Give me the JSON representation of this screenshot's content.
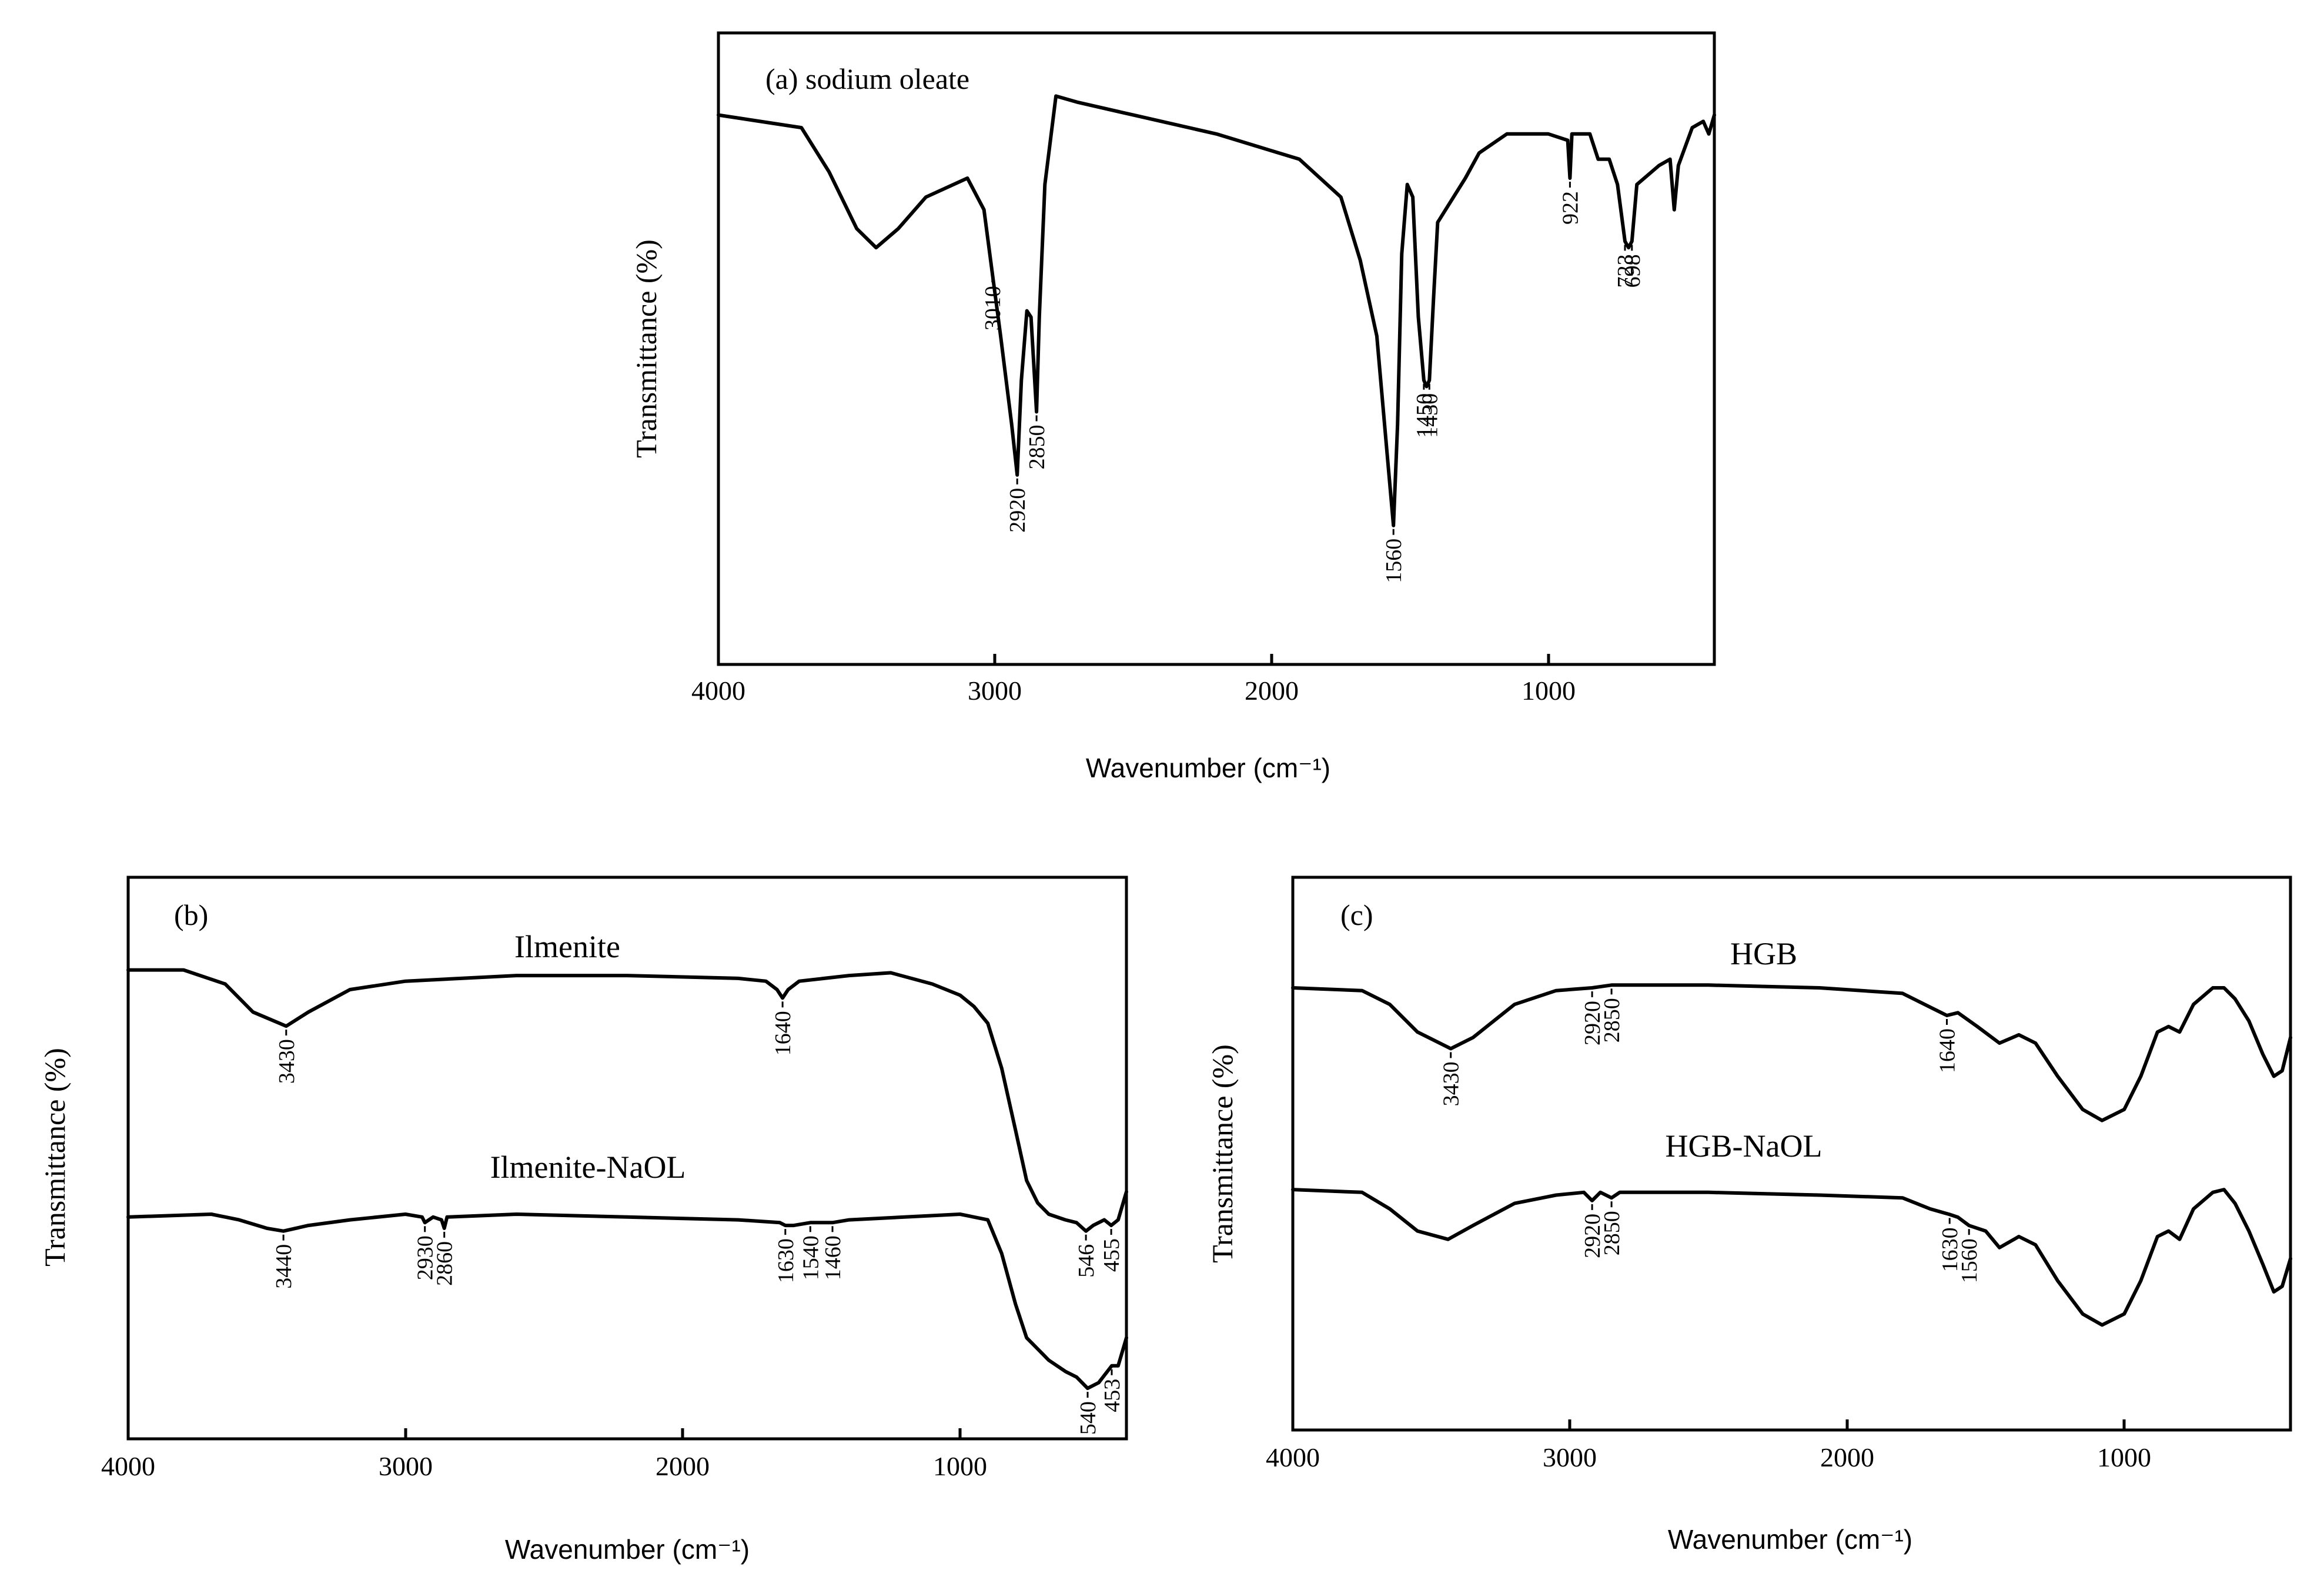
{
  "chart_data": [
    {
      "id": "a",
      "type": "line",
      "title": "(a) sodium oleate",
      "xlabel": "Wavenumber (cm⁻¹)",
      "ylabel": "Transmittance (%)",
      "xlim": [
        4000,
        400
      ],
      "xticks": [
        "4000",
        "3000",
        "2000",
        "1000"
      ],
      "series": [
        {
          "name": "sodium oleate",
          "label": "",
          "points": [
            [
              4000,
              0.87
            ],
            [
              3700,
              0.85
            ],
            [
              3600,
              0.78
            ],
            [
              3500,
              0.69
            ],
            [
              3430,
              0.66
            ],
            [
              3350,
              0.69
            ],
            [
              3250,
              0.74
            ],
            [
              3100,
              0.77
            ],
            [
              3040,
              0.72
            ],
            [
              3010,
              0.62
            ],
            [
              2980,
              0.52
            ],
            [
              2940,
              0.38
            ],
            [
              2920,
              0.3
            ],
            [
              2905,
              0.45
            ],
            [
              2885,
              0.56
            ],
            [
              2870,
              0.55
            ],
            [
              2850,
              0.4
            ],
            [
              2840,
              0.55
            ],
            [
              2820,
              0.76
            ],
            [
              2780,
              0.9
            ],
            [
              2700,
              0.89
            ],
            [
              2500,
              0.87
            ],
            [
              2200,
              0.84
            ],
            [
              1900,
              0.8
            ],
            [
              1750,
              0.74
            ],
            [
              1680,
              0.64
            ],
            [
              1620,
              0.52
            ],
            [
              1580,
              0.32
            ],
            [
              1560,
              0.22
            ],
            [
              1545,
              0.38
            ],
            [
              1530,
              0.65
            ],
            [
              1510,
              0.76
            ],
            [
              1490,
              0.74
            ],
            [
              1470,
              0.55
            ],
            [
              1450,
              0.45
            ],
            [
              1440,
              0.44
            ],
            [
              1430,
              0.45
            ],
            [
              1415,
              0.58
            ],
            [
              1400,
              0.7
            ],
            [
              1300,
              0.77
            ],
            [
              1250,
              0.81
            ],
            [
              1150,
              0.84
            ],
            [
              1000,
              0.84
            ],
            [
              930,
              0.83
            ],
            [
              922,
              0.77
            ],
            [
              915,
              0.84
            ],
            [
              850,
              0.84
            ],
            [
              820,
              0.8
            ],
            [
              780,
              0.8
            ],
            [
              750,
              0.76
            ],
            [
              723,
              0.67
            ],
            [
              710,
              0.66
            ],
            [
              698,
              0.67
            ],
            [
              680,
              0.76
            ],
            [
              600,
              0.79
            ],
            [
              560,
              0.8
            ],
            [
              545,
              0.72
            ],
            [
              530,
              0.79
            ],
            [
              480,
              0.85
            ],
            [
              440,
              0.86
            ],
            [
              420,
              0.84
            ],
            [
              400,
              0.87
            ]
          ],
          "peaks": [
            {
              "label": "3010",
              "x": 3010,
              "y": 0.62
            },
            {
              "label": "2920",
              "x": 2920,
              "y": 0.3
            },
            {
              "label": "2850",
              "x": 2850,
              "y": 0.4
            },
            {
              "label": "1560",
              "x": 1560,
              "y": 0.22
            },
            {
              "label": "1450",
              "x": 1450,
              "y": 0.45
            },
            {
              "label": "1430",
              "x": 1430,
              "y": 0.45
            },
            {
              "label": "922",
              "x": 922,
              "y": 0.77
            },
            {
              "label": "723",
              "x": 723,
              "y": 0.67
            },
            {
              "label": "698",
              "x": 698,
              "y": 0.67
            }
          ]
        }
      ]
    },
    {
      "id": "b",
      "type": "line",
      "title": "(b)",
      "xlabel": "Wavenumber (cm⁻¹)",
      "ylabel": "Transmittance (%)",
      "xlim": [
        4000,
        400
      ],
      "xticks": [
        "4000",
        "3000",
        "2000",
        "1000"
      ],
      "series": [
        {
          "name": "Ilmenite",
          "label": "Ilmenite",
          "points": [
            [
              4000,
              0.835
            ],
            [
              3800,
              0.835
            ],
            [
              3650,
              0.81
            ],
            [
              3550,
              0.76
            ],
            [
              3430,
              0.735
            ],
            [
              3350,
              0.76
            ],
            [
              3200,
              0.8
            ],
            [
              3000,
              0.815
            ],
            [
              2600,
              0.825
            ],
            [
              2200,
              0.825
            ],
            [
              1800,
              0.82
            ],
            [
              1700,
              0.815
            ],
            [
              1660,
              0.8
            ],
            [
              1640,
              0.785
            ],
            [
              1620,
              0.8
            ],
            [
              1580,
              0.815
            ],
            [
              1400,
              0.825
            ],
            [
              1250,
              0.83
            ],
            [
              1100,
              0.81
            ],
            [
              1000,
              0.79
            ],
            [
              950,
              0.77
            ],
            [
              900,
              0.74
            ],
            [
              850,
              0.66
            ],
            [
              800,
              0.55
            ],
            [
              760,
              0.46
            ],
            [
              720,
              0.42
            ],
            [
              680,
              0.4
            ],
            [
              620,
              0.39
            ],
            [
              580,
              0.385
            ],
            [
              546,
              0.37
            ],
            [
              520,
              0.38
            ],
            [
              480,
              0.39
            ],
            [
              455,
              0.38
            ],
            [
              430,
              0.39
            ],
            [
              400,
              0.44
            ]
          ],
          "peaks": [
            {
              "label": "3430",
              "x": 3430,
              "y": 0.735
            },
            {
              "label": "1640",
              "x": 1640,
              "y": 0.785
            },
            {
              "label": "546",
              "x": 546,
              "y": 0.37
            },
            {
              "label": "455",
              "x": 455,
              "y": 0.38
            }
          ]
        },
        {
          "name": "Ilmenite-NaOL",
          "label": "Ilmenite-NaOL",
          "points": [
            [
              4000,
              0.395
            ],
            [
              3700,
              0.4
            ],
            [
              3600,
              0.39
            ],
            [
              3500,
              0.375
            ],
            [
              3440,
              0.37
            ],
            [
              3350,
              0.38
            ],
            [
              3200,
              0.39
            ],
            [
              3000,
              0.4
            ],
            [
              2940,
              0.395
            ],
            [
              2930,
              0.385
            ],
            [
              2900,
              0.395
            ],
            [
              2870,
              0.39
            ],
            [
              2860,
              0.375
            ],
            [
              2850,
              0.395
            ],
            [
              2600,
              0.4
            ],
            [
              2200,
              0.395
            ],
            [
              1800,
              0.39
            ],
            [
              1650,
              0.385
            ],
            [
              1630,
              0.38
            ],
            [
              1600,
              0.38
            ],
            [
              1540,
              0.385
            ],
            [
              1500,
              0.385
            ],
            [
              1460,
              0.385
            ],
            [
              1400,
              0.39
            ],
            [
              1200,
              0.395
            ],
            [
              1000,
              0.4
            ],
            [
              900,
              0.39
            ],
            [
              850,
              0.33
            ],
            [
              800,
              0.24
            ],
            [
              760,
              0.18
            ],
            [
              720,
              0.16
            ],
            [
              680,
              0.14
            ],
            [
              620,
              0.12
            ],
            [
              580,
              0.11
            ],
            [
              540,
              0.09
            ],
            [
              500,
              0.1
            ],
            [
              453,
              0.13
            ],
            [
              430,
              0.13
            ],
            [
              400,
              0.18
            ]
          ],
          "peaks": [
            {
              "label": "3440",
              "x": 3440,
              "y": 0.37
            },
            {
              "label": "2930",
              "x": 2930,
              "y": 0.385
            },
            {
              "label": "2860",
              "x": 2860,
              "y": 0.375
            },
            {
              "label": "1630",
              "x": 1630,
              "y": 0.38
            },
            {
              "label": "1540",
              "x": 1540,
              "y": 0.385
            },
            {
              "label": "1460",
              "x": 1460,
              "y": 0.385
            },
            {
              "label": "540",
              "x": 540,
              "y": 0.09
            },
            {
              "label": "453",
              "x": 453,
              "y": 0.13
            }
          ]
        }
      ]
    },
    {
      "id": "c",
      "type": "line",
      "title": "(c)",
      "xlabel": "Wavenumber (cm⁻¹)",
      "ylabel": "Transmittance (%)",
      "xlim": [
        4000,
        400
      ],
      "xticks": [
        "4000",
        "3000",
        "2000",
        "1000"
      ],
      "series": [
        {
          "name": "HGB",
          "label": "HGB",
          "points": [
            [
              4000,
              0.8
            ],
            [
              3750,
              0.795
            ],
            [
              3650,
              0.77
            ],
            [
              3550,
              0.72
            ],
            [
              3430,
              0.69
            ],
            [
              3350,
              0.71
            ],
            [
              3200,
              0.77
            ],
            [
              3050,
              0.795
            ],
            [
              2920,
              0.8
            ],
            [
              2850,
              0.805
            ],
            [
              2500,
              0.805
            ],
            [
              2100,
              0.8
            ],
            [
              1800,
              0.79
            ],
            [
              1700,
              0.765
            ],
            [
              1640,
              0.75
            ],
            [
              1600,
              0.755
            ],
            [
              1530,
              0.73
            ],
            [
              1450,
              0.7
            ],
            [
              1380,
              0.715
            ],
            [
              1320,
              0.7
            ],
            [
              1240,
              0.64
            ],
            [
              1150,
              0.58
            ],
            [
              1080,
              0.56
            ],
            [
              1000,
              0.58
            ],
            [
              940,
              0.64
            ],
            [
              880,
              0.72
            ],
            [
              840,
              0.73
            ],
            [
              800,
              0.72
            ],
            [
              750,
              0.77
            ],
            [
              680,
              0.8
            ],
            [
              640,
              0.8
            ],
            [
              600,
              0.78
            ],
            [
              550,
              0.74
            ],
            [
              500,
              0.68
            ],
            [
              460,
              0.64
            ],
            [
              430,
              0.65
            ],
            [
              400,
              0.71
            ]
          ],
          "peaks": [
            {
              "label": "3430",
              "x": 3430,
              "y": 0.69
            },
            {
              "label": "2920",
              "x": 2920,
              "y": 0.8
            },
            {
              "label": "2850",
              "x": 2850,
              "y": 0.805
            },
            {
              "label": "1640",
              "x": 1640,
              "y": 0.75
            }
          ]
        },
        {
          "name": "HGB-NaOL",
          "label": "HGB-NaOL",
          "points": [
            [
              4000,
              0.435
            ],
            [
              3750,
              0.43
            ],
            [
              3650,
              0.4
            ],
            [
              3550,
              0.36
            ],
            [
              3440,
              0.345
            ],
            [
              3350,
              0.37
            ],
            [
              3200,
              0.41
            ],
            [
              3050,
              0.425
            ],
            [
              2950,
              0.43
            ],
            [
              2920,
              0.415
            ],
            [
              2890,
              0.43
            ],
            [
              2850,
              0.42
            ],
            [
              2820,
              0.43
            ],
            [
              2500,
              0.43
            ],
            [
              2100,
              0.425
            ],
            [
              1800,
              0.42
            ],
            [
              1700,
              0.4
            ],
            [
              1630,
              0.39
            ],
            [
              1600,
              0.385
            ],
            [
              1560,
              0.37
            ],
            [
              1500,
              0.36
            ],
            [
              1450,
              0.33
            ],
            [
              1380,
              0.35
            ],
            [
              1320,
              0.335
            ],
            [
              1240,
              0.27
            ],
            [
              1150,
              0.21
            ],
            [
              1080,
              0.19
            ],
            [
              1000,
              0.21
            ],
            [
              940,
              0.27
            ],
            [
              880,
              0.35
            ],
            [
              840,
              0.36
            ],
            [
              800,
              0.345
            ],
            [
              750,
              0.4
            ],
            [
              680,
              0.43
            ],
            [
              640,
              0.435
            ],
            [
              600,
              0.41
            ],
            [
              550,
              0.36
            ],
            [
              500,
              0.3
            ],
            [
              460,
              0.25
            ],
            [
              430,
              0.26
            ],
            [
              400,
              0.31
            ]
          ],
          "peaks": [
            {
              "label": "2920",
              "x": 2920,
              "y": 0.415
            },
            {
              "label": "2850",
              "x": 2850,
              "y": 0.42
            },
            {
              "label": "1630",
              "x": 1630,
              "y": 0.39
            },
            {
              "label": "1560",
              "x": 1560,
              "y": 0.37
            }
          ]
        }
      ]
    }
  ]
}
